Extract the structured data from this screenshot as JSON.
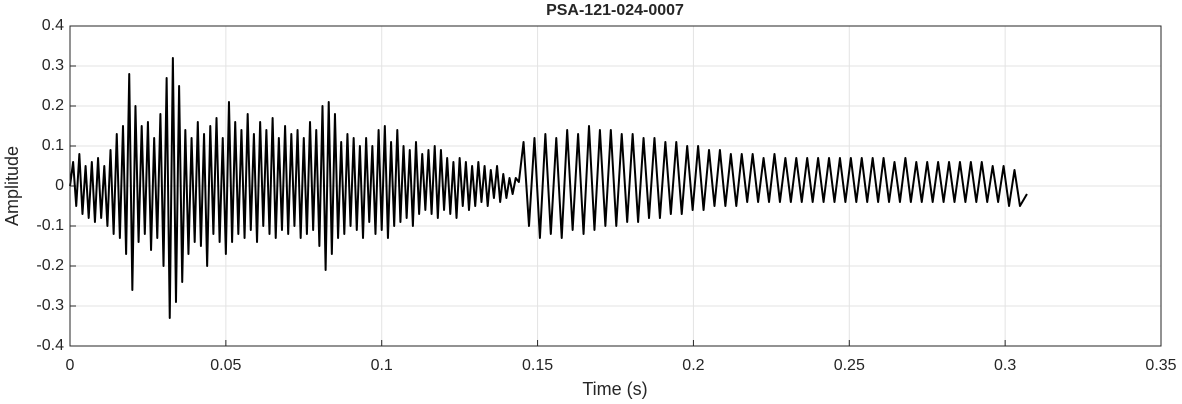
{
  "chart_data": {
    "type": "line",
    "title": "PSA-121-024-0007",
    "x_label": "Time (s)",
    "y_label": "Amplitude",
    "xlim": [
      0,
      0.35
    ],
    "xticks": [
      0,
      0.05,
      0.1,
      0.15,
      0.2,
      0.25,
      0.3,
      0.35
    ],
    "ylim": [
      -0.4,
      0.4
    ],
    "yticks": [
      -0.4,
      -0.3,
      -0.2,
      -0.1,
      0,
      0.1,
      0.2,
      0.3,
      0.4
    ],
    "grid": true,
    "series": [
      {
        "color": "#000000",
        "x": [
          0,
          0.001,
          0.002,
          0.003,
          0.004,
          0.005,
          0.006,
          0.007,
          0.008,
          0.009,
          0.01,
          0.011,
          0.012,
          0.013,
          0.014,
          0.015,
          0.016,
          0.017,
          0.018,
          0.019,
          0.02,
          0.021,
          0.022,
          0.023,
          0.024,
          0.025,
          0.026,
          0.027,
          0.028,
          0.029,
          0.03,
          0.031,
          0.032,
          0.033,
          0.034,
          0.035,
          0.036,
          0.037,
          0.038,
          0.039,
          0.04,
          0.041,
          0.042,
          0.043,
          0.044,
          0.045,
          0.046,
          0.047,
          0.048,
          0.049,
          0.05,
          0.051,
          0.052,
          0.053,
          0.054,
          0.055,
          0.056,
          0.057,
          0.058,
          0.059,
          0.06,
          0.061,
          0.062,
          0.063,
          0.064,
          0.065,
          0.066,
          0.067,
          0.068,
          0.069,
          0.07,
          0.071,
          0.072,
          0.073,
          0.074,
          0.075,
          0.076,
          0.077,
          0.078,
          0.079,
          0.08,
          0.081,
          0.082,
          0.083,
          0.084,
          0.085,
          0.086,
          0.087,
          0.088,
          0.089,
          0.09,
          0.091,
          0.092,
          0.093,
          0.094,
          0.095,
          0.096,
          0.097,
          0.098,
          0.099,
          0.1,
          0.101,
          0.102,
          0.103,
          0.104,
          0.105,
          0.106,
          0.107,
          0.108,
          0.109,
          0.11,
          0.111,
          0.112,
          0.113,
          0.114,
          0.115,
          0.116,
          0.117,
          0.118,
          0.119,
          0.12,
          0.121,
          0.122,
          0.123,
          0.124,
          0.125,
          0.126,
          0.127,
          0.128,
          0.129,
          0.13,
          0.131,
          0.132,
          0.133,
          0.134,
          0.135,
          0.136,
          0.137,
          0.138,
          0.139,
          0.14,
          0.141,
          0.142,
          0.143,
          0.144,
          0.1455,
          0.14725,
          0.149,
          0.15075,
          0.1525,
          0.15425,
          0.156,
          0.15775,
          0.1595,
          0.16125,
          0.163,
          0.16475,
          0.1665,
          0.16825,
          0.17,
          0.17175,
          0.1735,
          0.17525,
          0.177,
          0.17875,
          0.1805,
          0.18225,
          0.184,
          0.18575,
          0.1875,
          0.18925,
          0.191,
          0.19275,
          0.1945,
          0.19625,
          0.198,
          0.19975,
          0.2015,
          0.20325,
          0.205,
          0.20675,
          0.2085,
          0.21025,
          0.212,
          0.21375,
          0.2155,
          0.21725,
          0.219,
          0.22075,
          0.2225,
          0.22425,
          0.226,
          0.22775,
          0.2295,
          0.23125,
          0.233,
          0.23475,
          0.2365,
          0.23825,
          0.24,
          0.24175,
          0.2435,
          0.24525,
          0.247,
          0.24875,
          0.2505,
          0.25225,
          0.254,
          0.25575,
          0.2575,
          0.25925,
          0.261,
          0.26275,
          0.2645,
          0.26625,
          0.268,
          0.26975,
          0.2715,
          0.27325,
          0.275,
          0.27675,
          0.2785,
          0.28025,
          0.282,
          0.28375,
          0.2855,
          0.28725,
          0.289,
          0.29075,
          0.2925,
          0.29425,
          0.296,
          0.29775,
          0.2995,
          0.30125,
          0.303,
          0.30475,
          0.307
        ],
        "values": [
          0,
          0.06,
          -0.05,
          0.08,
          -0.07,
          0.05,
          -0.08,
          0.06,
          -0.09,
          0.07,
          -0.08,
          0.05,
          -0.1,
          0.09,
          -0.12,
          0.13,
          -0.13,
          0.15,
          -0.17,
          0.28,
          -0.26,
          0.2,
          -0.14,
          0.15,
          -0.12,
          0.16,
          -0.16,
          0.12,
          -0.13,
          0.18,
          -0.2,
          0.27,
          -0.33,
          0.32,
          -0.29,
          0.25,
          -0.24,
          0.14,
          -0.17,
          0.12,
          -0.14,
          0.16,
          -0.15,
          0.13,
          -0.2,
          0.15,
          -0.12,
          0.17,
          -0.14,
          0.12,
          -0.17,
          0.21,
          -0.14,
          0.16,
          -0.12,
          0.14,
          -0.13,
          0.18,
          -0.11,
          0.13,
          -0.14,
          0.16,
          -0.1,
          0.14,
          -0.12,
          0.17,
          -0.13,
          0.12,
          -0.11,
          0.15,
          -0.12,
          0.13,
          -0.1,
          0.14,
          -0.13,
          0.12,
          -0.12,
          0.16,
          -0.11,
          0.14,
          -0.15,
          0.2,
          -0.21,
          0.21,
          -0.17,
          0.18,
          -0.13,
          0.11,
          -0.12,
          0.13,
          -0.1,
          0.12,
          -0.11,
          0.1,
          -0.13,
          0.12,
          -0.09,
          0.1,
          -0.12,
          0.14,
          -0.11,
          0.15,
          -0.13,
          0.11,
          -0.1,
          0.14,
          -0.09,
          0.1,
          -0.08,
          0.09,
          -0.1,
          0.11,
          -0.07,
          0.08,
          -0.06,
          0.09,
          -0.07,
          0.1,
          -0.08,
          0.09,
          -0.06,
          0.07,
          -0.07,
          0.06,
          -0.08,
          0.07,
          -0.05,
          0.06,
          -0.06,
          0.05,
          -0.05,
          0.06,
          -0.04,
          0.05,
          -0.05,
          0.04,
          -0.03,
          0.05,
          -0.04,
          0.03,
          -0.03,
          0.02,
          -0.02,
          0.02,
          0.01,
          0.11,
          -0.1,
          0.12,
          -0.13,
          0.13,
          -0.12,
          0.12,
          -0.13,
          0.14,
          -0.11,
          0.13,
          -0.12,
          0.15,
          -0.11,
          0.14,
          -0.1,
          0.14,
          -0.1,
          0.13,
          -0.09,
          0.13,
          -0.09,
          0.12,
          -0.08,
          0.12,
          -0.08,
          0.11,
          -0.07,
          0.11,
          -0.07,
          0.1,
          -0.06,
          0.1,
          -0.06,
          0.09,
          -0.05,
          0.09,
          -0.05,
          0.08,
          -0.05,
          0.08,
          -0.04,
          0.08,
          -0.04,
          0.07,
          -0.04,
          0.08,
          -0.04,
          0.07,
          -0.04,
          0.07,
          -0.04,
          0.07,
          -0.04,
          0.07,
          -0.04,
          0.07,
          -0.04,
          0.07,
          -0.04,
          0.07,
          -0.04,
          0.07,
          -0.04,
          0.07,
          -0.04,
          0.07,
          -0.04,
          0.06,
          -0.04,
          0.07,
          -0.04,
          0.06,
          -0.04,
          0.06,
          -0.04,
          0.06,
          -0.04,
          0.06,
          -0.04,
          0.06,
          -0.04,
          0.06,
          -0.04,
          0.06,
          -0.04,
          0.05,
          -0.04,
          0.05,
          -0.05,
          0.04,
          -0.05,
          -0.02
        ]
      }
    ]
  }
}
